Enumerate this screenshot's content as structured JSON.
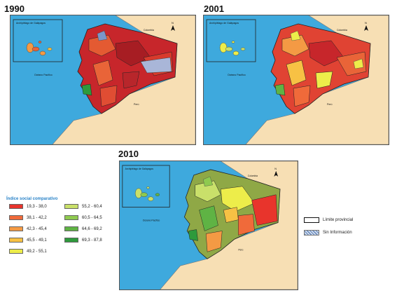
{
  "years": [
    "1990",
    "2001",
    "2010"
  ],
  "map_labels": {
    "galapagos": "Archipiélago de Galápagos",
    "colombia": "Colombia",
    "peru": "Perú",
    "ocean": "Océano Pacífico",
    "north": "N"
  },
  "legend": {
    "title": "Índice social comparativo",
    "items": [
      {
        "range": "19,3 - 38,0",
        "color": "#e8342c"
      },
      {
        "range": "38,1 - 42,2",
        "color": "#f06a3a"
      },
      {
        "range": "42,3 - 45,4",
        "color": "#f49a44"
      },
      {
        "range": "45,5 - 49,1",
        "color": "#f7c144"
      },
      {
        "range": "49,2 - 55,1",
        "color": "#eded4a"
      },
      {
        "range": "55,2 - 60,4",
        "color": "#c9e06a"
      },
      {
        "range": "60,5 - 64,5",
        "color": "#8fca4f"
      },
      {
        "range": "64,6 - 69,2",
        "color": "#5fb344"
      },
      {
        "range": "69,3 - 87,8",
        "color": "#2e9a3c"
      }
    ],
    "limite": "Límite provincial",
    "sin_info": "Sin Información"
  }
}
